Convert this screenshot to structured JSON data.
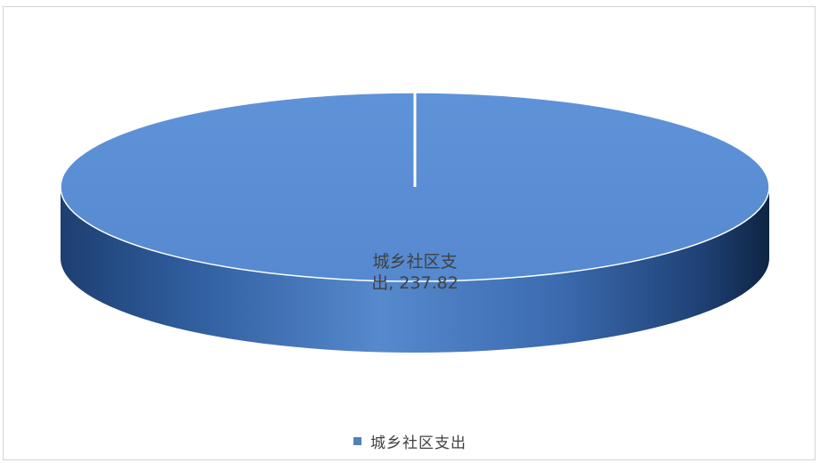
{
  "chart_data": {
    "type": "pie",
    "style": "3d",
    "slices": [
      {
        "label": "城乡社区支出",
        "value": 237.82
      }
    ],
    "data_labels": [
      {
        "line1": "城乡社区支",
        "line2": "出, 237.82"
      }
    ],
    "legend": {
      "position": "bottom",
      "entries": [
        "城乡社区支出"
      ]
    }
  },
  "colors": {
    "slice_top": "#5b8fd6",
    "slice_side_dark": "#1a3966",
    "slice_side_light": "#5a8cd0",
    "legend_swatch": "#4f81bd"
  }
}
